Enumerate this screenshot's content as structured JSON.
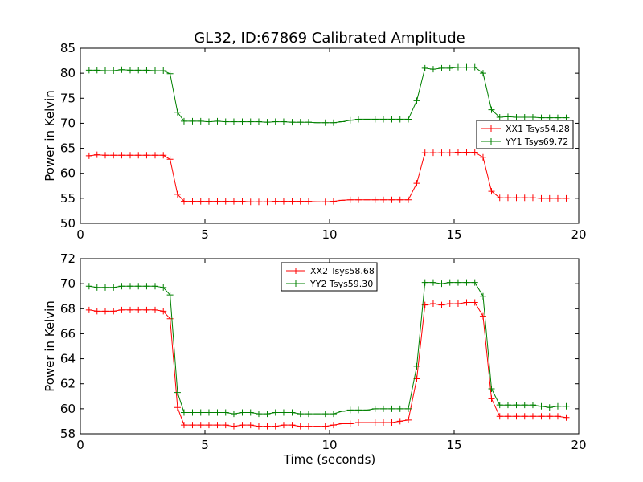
{
  "figure": {
    "title": "GL32, ID:67869 Calibrated Amplitude"
  },
  "chart_data": [
    {
      "type": "line",
      "title": "GL32, ID:67869 Calibrated Amplitude",
      "xlabel": "",
      "ylabel": "Power in Kelvin",
      "xlim": [
        0,
        20
      ],
      "ylim": [
        50,
        85
      ],
      "xticks": [
        "0",
        "5",
        "10",
        "15",
        "20"
      ],
      "yticks": [
        "50",
        "55",
        "60",
        "65",
        "70",
        "75",
        "80",
        "85"
      ],
      "grid": false,
      "legend_position": "center-right",
      "x": [
        0.35,
        0.67,
        1.0,
        1.33,
        1.66,
        2.0,
        2.33,
        2.66,
        3.0,
        3.33,
        3.6,
        3.9,
        4.16,
        4.5,
        4.83,
        5.16,
        5.5,
        5.83,
        6.16,
        6.5,
        6.83,
        7.16,
        7.5,
        7.83,
        8.16,
        8.5,
        8.83,
        9.16,
        9.5,
        9.83,
        10.16,
        10.5,
        10.83,
        11.16,
        11.5,
        11.83,
        12.16,
        12.5,
        12.83,
        13.16,
        13.5,
        13.83,
        14.16,
        14.5,
        14.83,
        15.16,
        15.5,
        15.83,
        16.16,
        16.5,
        16.83,
        17.16,
        17.5,
        17.83,
        18.16,
        18.5,
        18.83,
        19.16,
        19.5
      ],
      "series": [
        {
          "name": "XX1 Tsys54.28",
          "color": "#ff0000",
          "values": [
            63.5,
            63.7,
            63.6,
            63.6,
            63.6,
            63.6,
            63.6,
            63.6,
            63.6,
            63.6,
            62.8,
            55.8,
            54.4,
            54.4,
            54.4,
            54.4,
            54.4,
            54.4,
            54.4,
            54.4,
            54.3,
            54.3,
            54.3,
            54.4,
            54.4,
            54.4,
            54.4,
            54.4,
            54.3,
            54.3,
            54.4,
            54.6,
            54.7,
            54.7,
            54.7,
            54.7,
            54.7,
            54.7,
            54.7,
            54.7,
            58.0,
            64.1,
            64.1,
            64.1,
            64.1,
            64.2,
            64.2,
            64.2,
            63.2,
            56.4,
            55.1,
            55.1,
            55.1,
            55.1,
            55.1,
            55.0,
            55.0,
            55.0,
            55.0
          ]
        },
        {
          "name": "YY1 Tsys69.72",
          "color": "#008000",
          "values": [
            80.6,
            80.6,
            80.5,
            80.5,
            80.7,
            80.6,
            80.6,
            80.6,
            80.5,
            80.5,
            79.9,
            72.2,
            70.4,
            70.4,
            70.4,
            70.3,
            70.4,
            70.3,
            70.3,
            70.3,
            70.3,
            70.3,
            70.2,
            70.3,
            70.3,
            70.2,
            70.2,
            70.2,
            70.1,
            70.1,
            70.1,
            70.3,
            70.6,
            70.8,
            70.8,
            70.8,
            70.8,
            70.8,
            70.8,
            70.8,
            74.5,
            81.0,
            80.8,
            81.0,
            81.0,
            81.2,
            81.2,
            81.2,
            80.0,
            72.7,
            71.2,
            71.3,
            71.2,
            71.2,
            71.2,
            71.1,
            71.1,
            71.1,
            71.1
          ]
        }
      ]
    },
    {
      "type": "line",
      "title": "",
      "xlabel": "Time (seconds)",
      "ylabel": "Power in Kelvin",
      "xlim": [
        0,
        20
      ],
      "ylim": [
        58,
        72
      ],
      "xticks": [
        "0",
        "5",
        "10",
        "15",
        "20"
      ],
      "yticks": [
        "58",
        "60",
        "62",
        "64",
        "66",
        "68",
        "70",
        "72"
      ],
      "grid": false,
      "legend_position": "top-center",
      "x": [
        0.35,
        0.67,
        1.0,
        1.33,
        1.66,
        2.0,
        2.33,
        2.66,
        3.0,
        3.33,
        3.6,
        3.9,
        4.16,
        4.5,
        4.83,
        5.16,
        5.5,
        5.83,
        6.16,
        6.5,
        6.83,
        7.16,
        7.5,
        7.83,
        8.16,
        8.5,
        8.83,
        9.16,
        9.5,
        9.83,
        10.16,
        10.5,
        10.83,
        11.16,
        11.5,
        11.83,
        12.16,
        12.5,
        12.83,
        13.16,
        13.5,
        13.83,
        14.16,
        14.5,
        14.83,
        15.16,
        15.5,
        15.83,
        16.16,
        16.5,
        16.83,
        17.16,
        17.5,
        17.83,
        18.16,
        18.5,
        18.83,
        19.16,
        19.5
      ],
      "series": [
        {
          "name": "XX2 Tsys58.68",
          "color": "#ff0000",
          "values": [
            67.9,
            67.8,
            67.8,
            67.8,
            67.9,
            67.9,
            67.9,
            67.9,
            67.9,
            67.8,
            67.2,
            60.1,
            58.7,
            58.7,
            58.7,
            58.7,
            58.7,
            58.7,
            58.6,
            58.7,
            58.7,
            58.6,
            58.6,
            58.6,
            58.7,
            58.7,
            58.6,
            58.6,
            58.6,
            58.6,
            58.7,
            58.8,
            58.8,
            58.9,
            58.9,
            58.9,
            58.9,
            58.9,
            59.0,
            59.1,
            62.4,
            68.3,
            68.4,
            68.3,
            68.4,
            68.4,
            68.5,
            68.5,
            67.4,
            60.8,
            59.4,
            59.4,
            59.4,
            59.4,
            59.4,
            59.4,
            59.4,
            59.4,
            59.3
          ]
        },
        {
          "name": "YY2 Tsys59.30",
          "color": "#008000",
          "values": [
            69.8,
            69.7,
            69.7,
            69.7,
            69.8,
            69.8,
            69.8,
            69.8,
            69.8,
            69.7,
            69.1,
            61.3,
            59.7,
            59.7,
            59.7,
            59.7,
            59.7,
            59.7,
            59.6,
            59.7,
            59.7,
            59.6,
            59.6,
            59.7,
            59.7,
            59.7,
            59.6,
            59.6,
            59.6,
            59.6,
            59.6,
            59.8,
            59.9,
            59.9,
            59.9,
            60.0,
            60.0,
            60.0,
            60.0,
            60.0,
            63.4,
            70.1,
            70.1,
            70.0,
            70.1,
            70.1,
            70.1,
            70.1,
            69.0,
            61.6,
            60.3,
            60.3,
            60.3,
            60.3,
            60.3,
            60.2,
            60.1,
            60.2,
            60.2
          ]
        }
      ]
    }
  ]
}
